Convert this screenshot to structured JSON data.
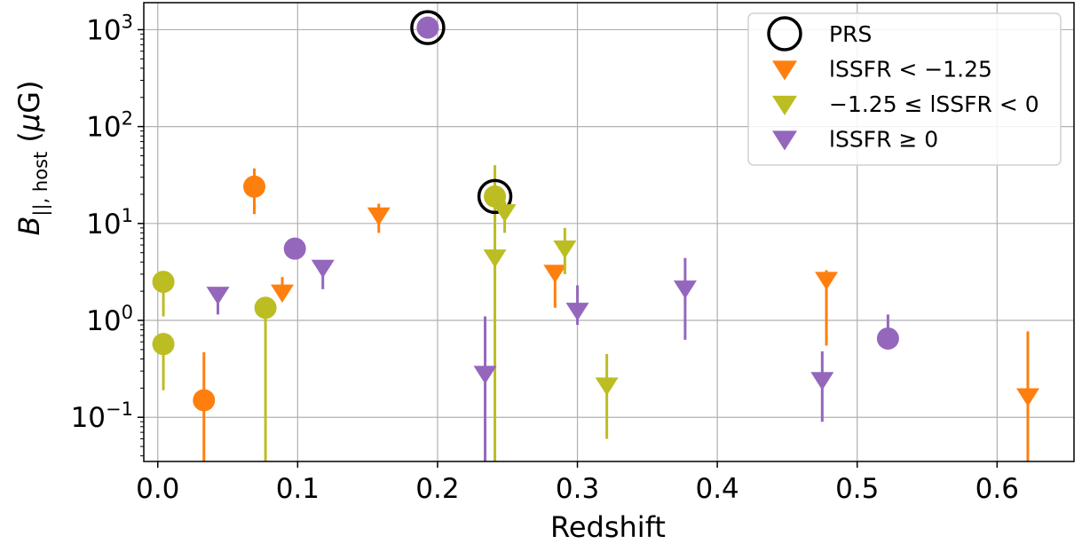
{
  "chart_data": {
    "type": "scatter",
    "xlabel": "Redshift",
    "ylabel": "B||, host (μG)",
    "xlim": [
      -0.01,
      0.655
    ],
    "ylim": [
      0.035,
      1900
    ],
    "yscale": "log",
    "grid": true,
    "legend_placement": "top-right",
    "x_ticks": [
      0.0,
      0.1,
      0.2,
      0.3,
      0.4,
      0.5,
      0.6
    ],
    "x_tick_labels": [
      "0.0",
      "0.1",
      "0.2",
      "0.3",
      "0.4",
      "0.5",
      "0.6"
    ],
    "y_ticks": [
      0.1,
      1,
      10,
      100,
      1000
    ],
    "y_tick_labels": [
      {
        "base": "10",
        "exp": "−1"
      },
      {
        "base": "10",
        "exp": "0"
      },
      {
        "base": "10",
        "exp": "1"
      },
      {
        "base": "10",
        "exp": "2"
      },
      {
        "base": "10",
        "exp": "3"
      }
    ],
    "colors": {
      "orange": "#ff7f0e",
      "olive": "#bcbd22",
      "purple": "#9467bd",
      "grid": "#b0b0b0"
    },
    "legend": [
      {
        "label": "PRS",
        "marker": "open-circle",
        "color": "#000000"
      },
      {
        "label": "lSSFR < −1.25",
        "marker": "triangle-down",
        "color": "#ff7f0e"
      },
      {
        "label": "−1.25 ≤ lSSFR < 0",
        "marker": "triangle-down",
        "color": "#bcbd22"
      },
      {
        "label": "lSSFR ≥ 0",
        "marker": "triangle-down",
        "color": "#9467bd"
      }
    ],
    "series": [
      {
        "name": "lSSFR < −1.25",
        "color": "#ff7f0e",
        "points": [
          {
            "x": 0.033,
            "y": 0.15,
            "lo": 0.035,
            "hi": 0.47,
            "marker": "circle"
          },
          {
            "x": 0.069,
            "y": 24,
            "lo": 12.5,
            "hi": 37,
            "marker": "circle"
          },
          {
            "x": 0.089,
            "y": 2.0,
            "lo": 1.75,
            "hi": 2.8,
            "marker": "triangle-down"
          },
          {
            "x": 0.158,
            "y": 12.5,
            "lo": 8,
            "hi": 16,
            "marker": "triangle-down"
          },
          {
            "x": 0.284,
            "y": 3.2,
            "lo": 1.35,
            "hi": 3.5,
            "marker": "triangle-down"
          },
          {
            "x": 0.478,
            "y": 2.7,
            "lo": 0.55,
            "hi": 3.3,
            "marker": "triangle-down"
          },
          {
            "x": 0.622,
            "y": 0.17,
            "lo": 0.035,
            "hi": 0.77,
            "marker": "triangle-down"
          }
        ]
      },
      {
        "name": "−1.25 ≤ lSSFR < 0",
        "color": "#bcbd22",
        "points": [
          {
            "x": 0.004,
            "y": 2.5,
            "lo": 1.1,
            "hi": 2.6,
            "marker": "circle"
          },
          {
            "x": 0.004,
            "y": 0.57,
            "lo": 0.19,
            "hi": 0.7,
            "marker": "circle"
          },
          {
            "x": 0.077,
            "y": 1.35,
            "lo": 0.035,
            "hi": 1.45,
            "marker": "circle"
          },
          {
            "x": 0.241,
            "y": 19,
            "lo": 0.035,
            "hi": 40,
            "marker": "circle",
            "prs": true
          },
          {
            "x": 0.241,
            "y": 4.6,
            "lo": 2.7,
            "hi": 5.3,
            "marker": "triangle-down"
          },
          {
            "x": 0.248,
            "y": 13.5,
            "lo": 8,
            "hi": 17,
            "marker": "triangle-down"
          },
          {
            "x": 0.291,
            "y": 5.7,
            "lo": 3,
            "hi": 9,
            "marker": "triangle-down"
          },
          {
            "x": 0.321,
            "y": 0.22,
            "lo": 0.06,
            "hi": 0.45,
            "marker": "triangle-down"
          }
        ]
      },
      {
        "name": "lSSFR ≥ 0",
        "color": "#9467bd",
        "points": [
          {
            "x": 0.043,
            "y": 1.9,
            "lo": 1.15,
            "hi": 2.1,
            "marker": "triangle-down"
          },
          {
            "x": 0.098,
            "y": 5.5,
            "lo": 5.3,
            "hi": 5.8,
            "marker": "circle"
          },
          {
            "x": 0.118,
            "y": 3.6,
            "lo": 2.1,
            "hi": 4.0,
            "marker": "triangle-down"
          },
          {
            "x": 0.193,
            "y": 1050,
            "lo": 1000,
            "hi": 1100,
            "marker": "circle",
            "prs": true
          },
          {
            "x": 0.234,
            "y": 0.29,
            "lo": 0.035,
            "hi": 1.1,
            "marker": "triangle-down"
          },
          {
            "x": 0.3,
            "y": 1.3,
            "lo": 0.9,
            "hi": 2.3,
            "marker": "triangle-down"
          },
          {
            "x": 0.377,
            "y": 2.2,
            "lo": 0.63,
            "hi": 4.4,
            "marker": "triangle-down"
          },
          {
            "x": 0.475,
            "y": 0.25,
            "lo": 0.09,
            "hi": 0.48,
            "marker": "triangle-down"
          },
          {
            "x": 0.522,
            "y": 0.65,
            "lo": 0.6,
            "hi": 1.15,
            "marker": "circle"
          }
        ]
      }
    ]
  }
}
